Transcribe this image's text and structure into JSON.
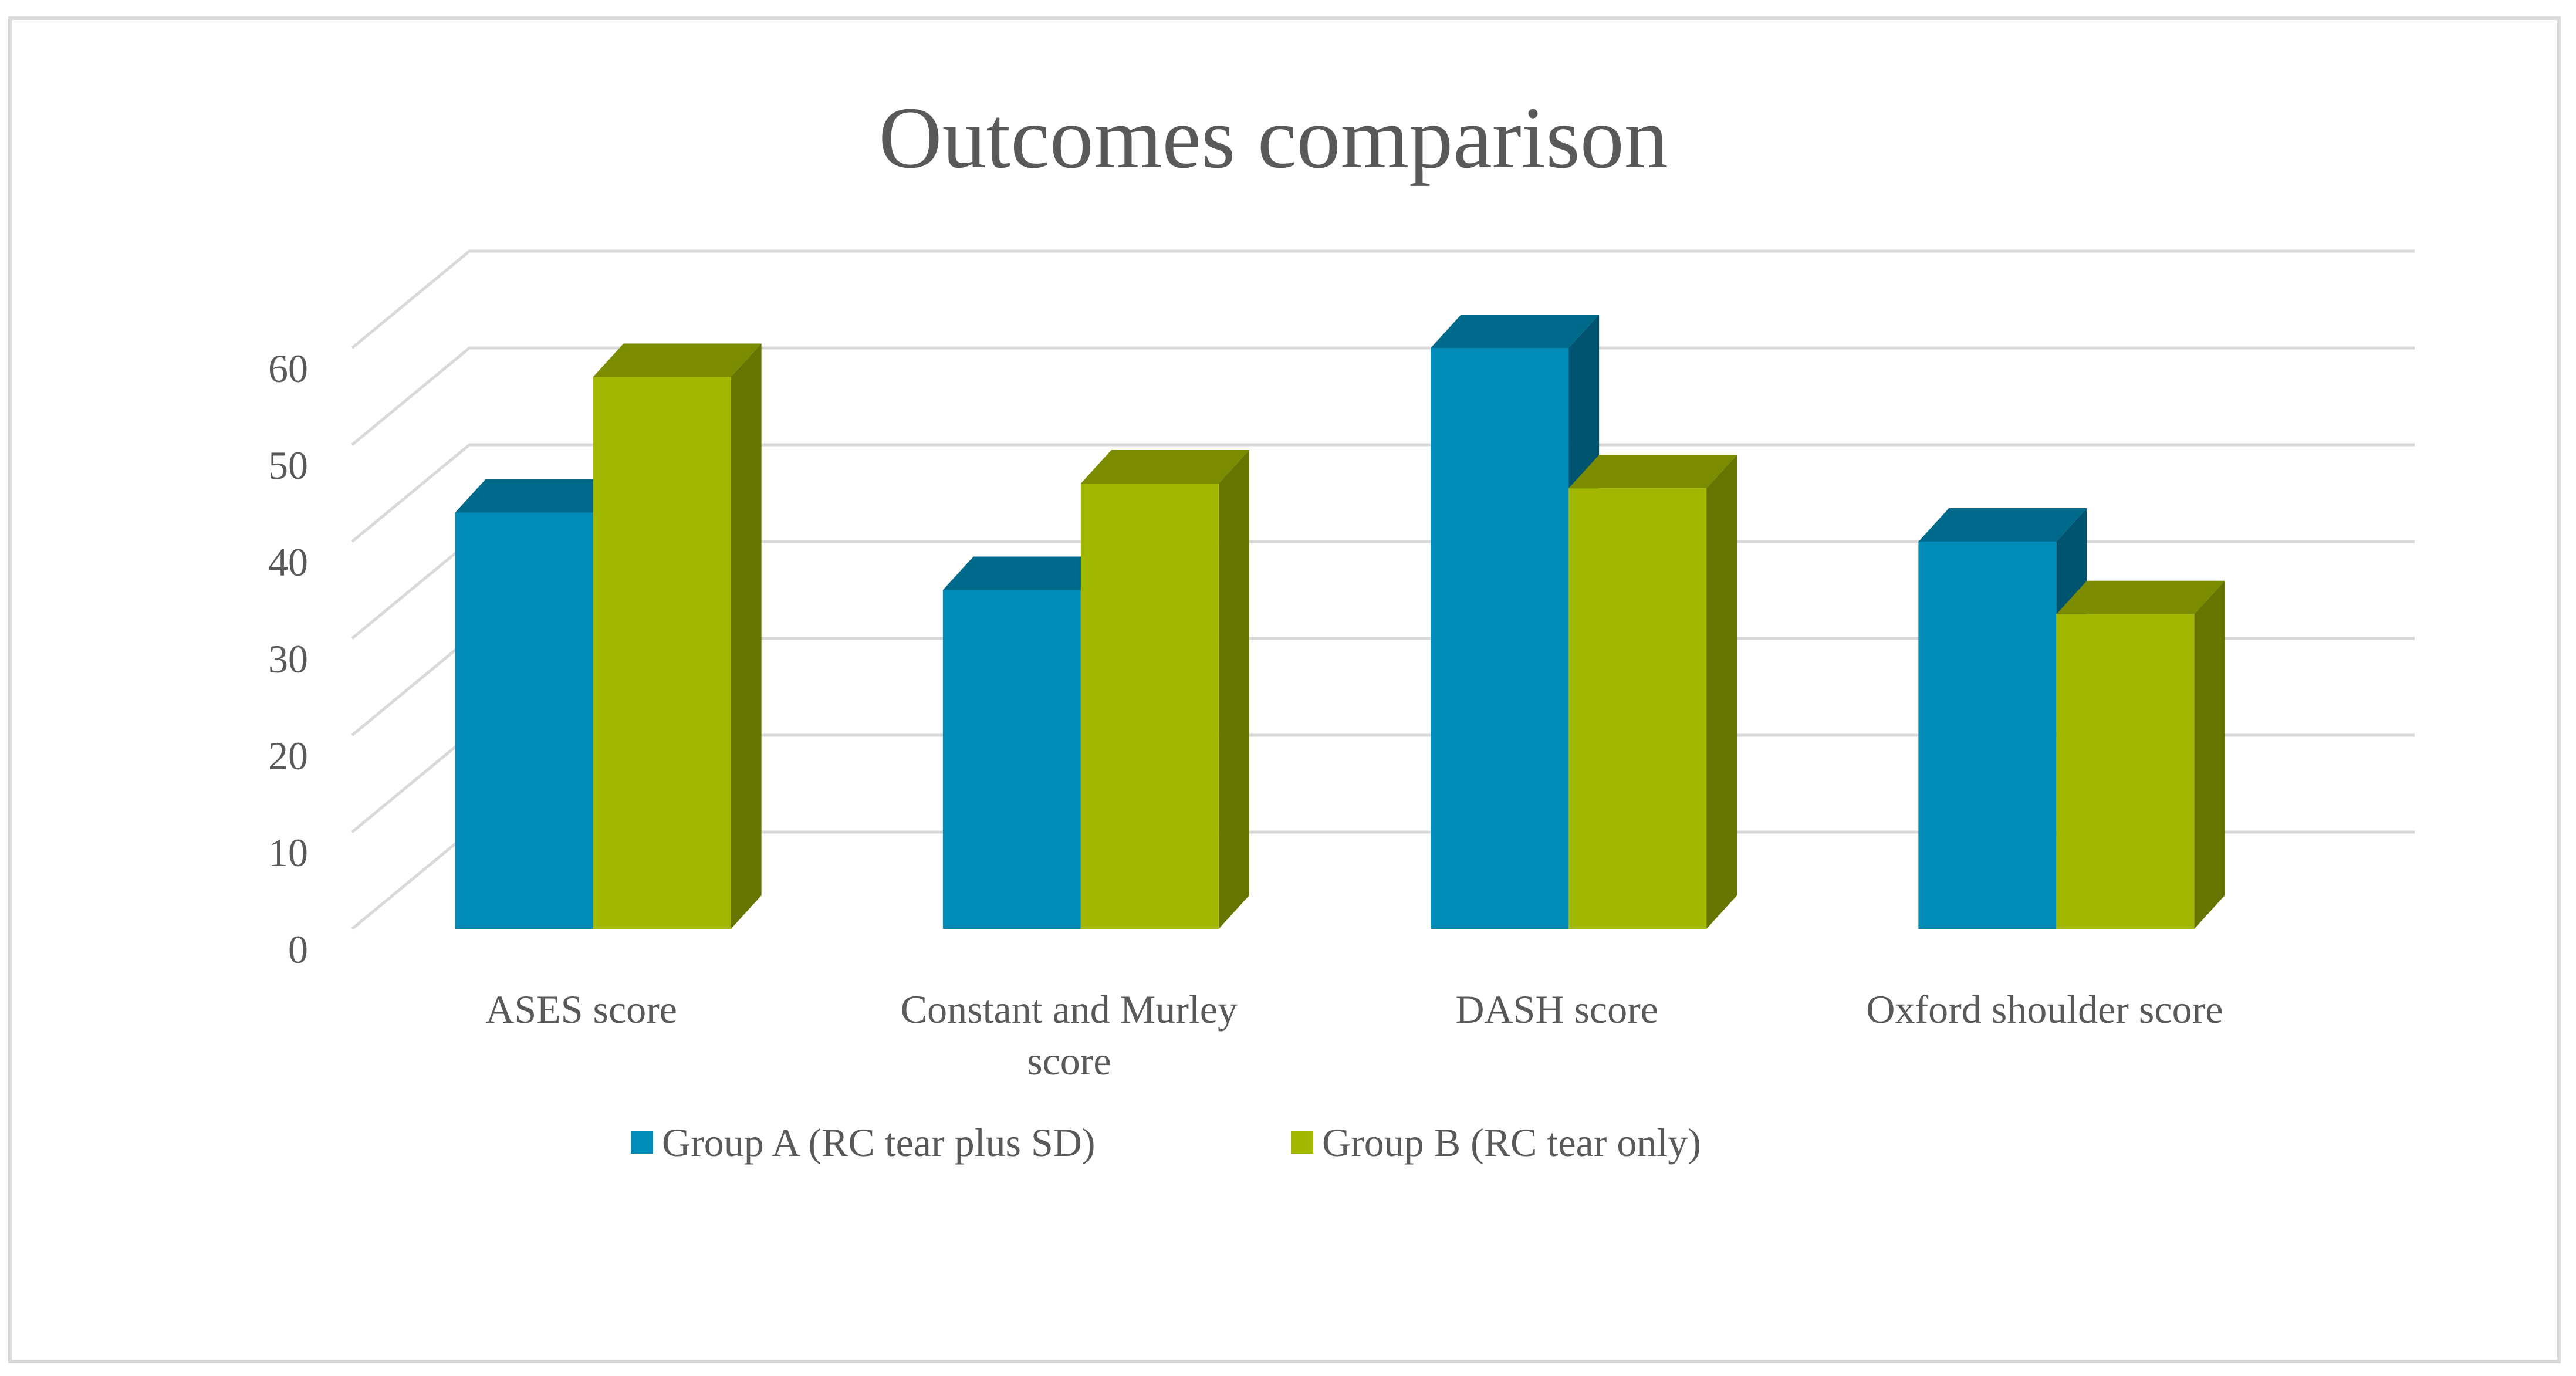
{
  "chart_data": {
    "type": "bar",
    "style": "3d-clustered-column",
    "title": "Outcomes comparison",
    "xlabel": "",
    "ylabel": "",
    "ylim": [
      0,
      60
    ],
    "yticks": [
      "0",
      "10",
      "20",
      "30",
      "40",
      "50",
      "60"
    ],
    "grid": true,
    "categories": [
      "ASES score",
      "Constant and Murley score",
      "DASH score",
      "Oxford shoulder score"
    ],
    "category_label_lines": [
      [
        "ASES score"
      ],
      [
        "Constant and Murley",
        "score"
      ],
      [
        "DASH score"
      ],
      [
        "Oxford shoulder score"
      ]
    ],
    "series": [
      {
        "name": "Group A (RC tear plus SD)",
        "values": [
          43,
          35,
          60,
          40
        ],
        "color": "#008bb9",
        "top_color": "#006a8d",
        "side_color": "#005470"
      },
      {
        "name": "Group B (RC tear only)",
        "values": [
          57,
          46,
          45.5,
          32.5
        ],
        "color": "#a2b800",
        "top_color": "#7b8c00",
        "side_color": "#667500"
      }
    ],
    "legend_position": "bottom",
    "colors": {
      "title": "#595959",
      "axis_text": "#595959",
      "grid": "#d9d9d9"
    }
  }
}
